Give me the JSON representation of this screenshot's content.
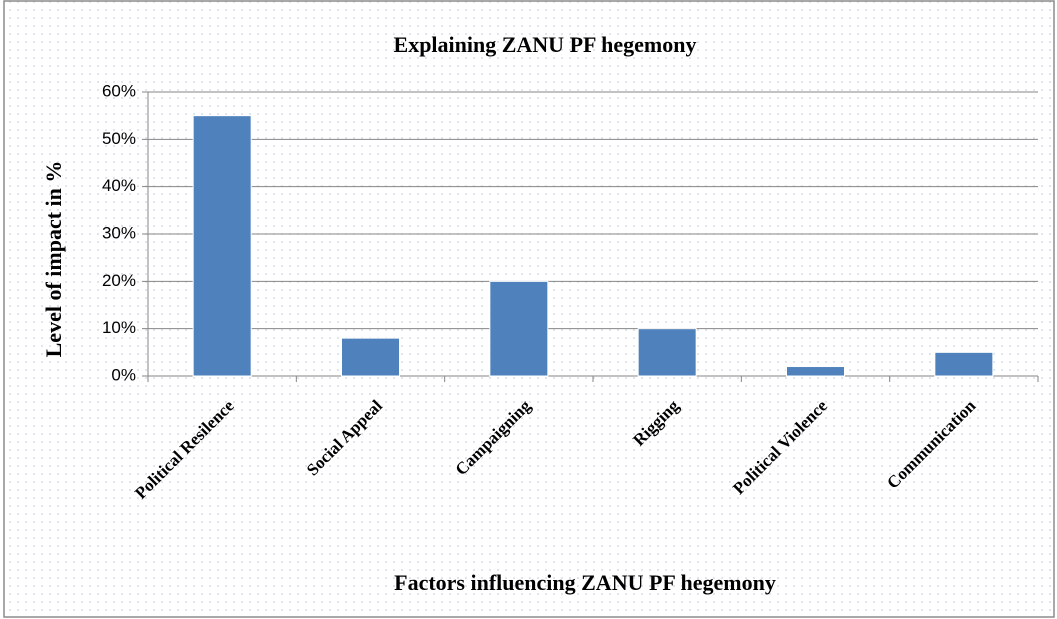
{
  "chart_data": {
    "type": "bar",
    "title": "Explaining ZANU PF hegemony",
    "x_label": "Factors influencing ZANU PF hegemony",
    "y_label": "Level of impact in %",
    "categories": [
      "Political Resilence",
      "Social Appeal",
      "Campaigning",
      "Rigging",
      "Political Violence",
      "Communication"
    ],
    "values": [
      55,
      8,
      20,
      10,
      2,
      5
    ],
    "color": "#4f81bd",
    "ylim": [
      0,
      60
    ],
    "yticks": [
      {
        "value": 0,
        "label": "0%"
      },
      {
        "value": 10,
        "label": "10%"
      },
      {
        "value": 20,
        "label": "20%"
      },
      {
        "value": 30,
        "label": "30%"
      },
      {
        "value": 40,
        "label": "40%"
      },
      {
        "value": 50,
        "label": "50%"
      },
      {
        "value": 60,
        "label": "60%"
      }
    ],
    "grid": true
  }
}
